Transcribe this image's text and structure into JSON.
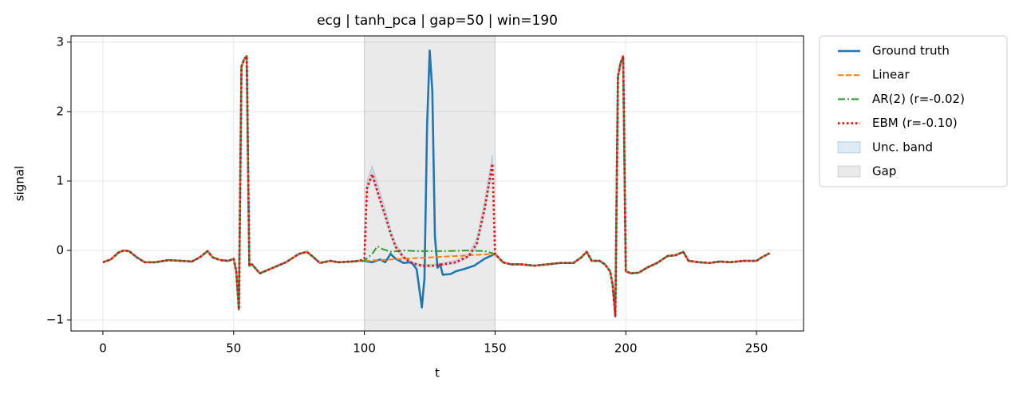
{
  "chart_data": {
    "type": "line",
    "title": "ecg | tanh_pca | gap=50 | win=190",
    "xlabel": "t",
    "ylabel": "signal",
    "xlim": [
      -12.2,
      268
    ],
    "ylim": [
      -1.16,
      3.09
    ],
    "xticks": [
      0,
      50,
      100,
      150,
      200,
      250
    ],
    "yticks": [
      {
        "value": -1,
        "label": "−1"
      },
      0,
      1,
      2,
      3
    ],
    "grid": true,
    "legend": "outside right",
    "gap": {
      "name": "Gap",
      "x0": 100,
      "x1": 150,
      "color": "#808080"
    },
    "band": {
      "name": "Unc. band",
      "color": "#1f77b4",
      "x": [
        100,
        101,
        103,
        105,
        108,
        110,
        112,
        115,
        118,
        122,
        126,
        130,
        135,
        140,
        143,
        146,
        149
      ],
      "lower": [
        -0.14,
        0.85,
        1.05,
        0.8,
        0.45,
        0.2,
        0.02,
        -0.12,
        -0.2,
        -0.24,
        -0.24,
        -0.22,
        -0.19,
        -0.1,
        0.05,
        0.55,
        1.18
      ],
      "upper": [
        -0.1,
        1.0,
        1.22,
        0.98,
        0.6,
        0.32,
        0.1,
        -0.07,
        -0.16,
        -0.2,
        -0.2,
        -0.18,
        -0.14,
        -0.04,
        0.18,
        0.72,
        1.38
      ]
    },
    "series": [
      {
        "name": "Ground truth",
        "color": "#1f77b4",
        "dash": "solid",
        "x": [
          0,
          3,
          6,
          8,
          10,
          13,
          16,
          20,
          25,
          30,
          34,
          37,
          40,
          42,
          45,
          48,
          50,
          51,
          52,
          53,
          54,
          55,
          56,
          57,
          60,
          65,
          70,
          75,
          78,
          80,
          83,
          87,
          90,
          95,
          98,
          100,
          103,
          106,
          108,
          110,
          112,
          115,
          118,
          120,
          122,
          123,
          124,
          125,
          126,
          127,
          128,
          129,
          130,
          133,
          135,
          138,
          142,
          146,
          150,
          153,
          156,
          160,
          165,
          170,
          175,
          180,
          183,
          185,
          187,
          190,
          192,
          194,
          195,
          196,
          197,
          198,
          199,
          200,
          202,
          205,
          208,
          212,
          216,
          219,
          222,
          224,
          228,
          232,
          236,
          240,
          245,
          250,
          252,
          255
        ],
        "values": [
          -0.17,
          -0.13,
          -0.03,
          0,
          -0.01,
          -0.1,
          -0.17,
          -0.17,
          -0.14,
          -0.15,
          -0.16,
          -0.1,
          -0.01,
          -0.1,
          -0.14,
          -0.15,
          -0.12,
          -0.3,
          -0.85,
          2.65,
          2.75,
          2.8,
          -0.22,
          -0.2,
          -0.33,
          -0.25,
          -0.17,
          -0.05,
          -0.02,
          -0.08,
          -0.18,
          -0.15,
          -0.17,
          -0.16,
          -0.15,
          -0.15,
          -0.17,
          -0.13,
          -0.17,
          -0.05,
          -0.12,
          -0.18,
          -0.17,
          -0.27,
          -0.82,
          -0.4,
          1.8,
          2.88,
          2.3,
          0.2,
          -0.25,
          -0.2,
          -0.35,
          -0.34,
          -0.3,
          -0.27,
          -0.22,
          -0.12,
          -0.05,
          -0.17,
          -0.2,
          -0.2,
          -0.22,
          -0.2,
          -0.18,
          -0.18,
          -0.1,
          -0.02,
          -0.15,
          -0.15,
          -0.2,
          -0.3,
          -0.5,
          -0.95,
          2.5,
          2.7,
          2.8,
          -0.3,
          -0.33,
          -0.32,
          -0.25,
          -0.18,
          -0.08,
          -0.07,
          -0.02,
          -0.15,
          -0.17,
          -0.18,
          -0.16,
          -0.17,
          -0.15,
          -0.15,
          -0.1,
          -0.04
        ]
      },
      {
        "name": "Linear",
        "color": "#ff7f0e",
        "dash": "dashed",
        "x": [
          0,
          3,
          6,
          8,
          10,
          13,
          16,
          20,
          25,
          30,
          34,
          37,
          40,
          42,
          45,
          48,
          50,
          51,
          52,
          53,
          54,
          55,
          56,
          57,
          60,
          65,
          70,
          75,
          78,
          80,
          83,
          87,
          90,
          95,
          98,
          100,
          150,
          153,
          156,
          160,
          165,
          170,
          175,
          180,
          183,
          185,
          187,
          190,
          192,
          194,
          195,
          196,
          197,
          198,
          199,
          200,
          202,
          205,
          208,
          212,
          216,
          219,
          222,
          224,
          228,
          232,
          236,
          240,
          245,
          250,
          252,
          255
        ],
        "values": [
          -0.17,
          -0.13,
          -0.03,
          0,
          -0.01,
          -0.1,
          -0.17,
          -0.17,
          -0.14,
          -0.15,
          -0.16,
          -0.1,
          -0.01,
          -0.1,
          -0.14,
          -0.15,
          -0.12,
          -0.3,
          -0.85,
          2.65,
          2.75,
          2.8,
          -0.22,
          -0.2,
          -0.33,
          -0.25,
          -0.17,
          -0.05,
          -0.02,
          -0.08,
          -0.18,
          -0.15,
          -0.17,
          -0.16,
          -0.15,
          -0.15,
          -0.05,
          -0.17,
          -0.2,
          -0.2,
          -0.22,
          -0.2,
          -0.18,
          -0.18,
          -0.1,
          -0.02,
          -0.15,
          -0.15,
          -0.2,
          -0.3,
          -0.5,
          -0.95,
          2.5,
          2.7,
          2.8,
          -0.3,
          -0.33,
          -0.32,
          -0.25,
          -0.18,
          -0.08,
          -0.07,
          -0.02,
          -0.15,
          -0.17,
          -0.18,
          -0.16,
          -0.17,
          -0.15,
          -0.15,
          -0.1,
          -0.04
        ]
      },
      {
        "name": "AR(2) (r=-0.02)",
        "color": "#2ca02c",
        "dash": "dashdot",
        "x": [
          0,
          3,
          6,
          8,
          10,
          13,
          16,
          20,
          25,
          30,
          34,
          37,
          40,
          42,
          45,
          48,
          50,
          51,
          52,
          53,
          54,
          55,
          56,
          57,
          60,
          65,
          70,
          75,
          78,
          80,
          83,
          87,
          90,
          95,
          98,
          100,
          103,
          105,
          107,
          110,
          115,
          120,
          130,
          140,
          146,
          150,
          153,
          156,
          160,
          165,
          170,
          175,
          180,
          183,
          185,
          187,
          190,
          192,
          194,
          195,
          196,
          197,
          198,
          199,
          200,
          202,
          205,
          208,
          212,
          216,
          219,
          222,
          224,
          228,
          232,
          236,
          240,
          245,
          250,
          252,
          255
        ],
        "values": [
          -0.17,
          -0.13,
          -0.03,
          0,
          -0.01,
          -0.1,
          -0.17,
          -0.17,
          -0.14,
          -0.15,
          -0.16,
          -0.1,
          -0.01,
          -0.1,
          -0.14,
          -0.15,
          -0.12,
          -0.3,
          -0.85,
          2.65,
          2.75,
          2.8,
          -0.22,
          -0.2,
          -0.33,
          -0.25,
          -0.17,
          -0.05,
          -0.02,
          -0.08,
          -0.18,
          -0.15,
          -0.17,
          -0.16,
          -0.15,
          -0.15,
          -0.05,
          0.06,
          0.02,
          -0.02,
          0,
          -0.01,
          -0.01,
          0,
          -0.01,
          -0.05,
          -0.17,
          -0.2,
          -0.2,
          -0.22,
          -0.2,
          -0.18,
          -0.18,
          -0.1,
          -0.02,
          -0.15,
          -0.15,
          -0.2,
          -0.3,
          -0.5,
          -0.95,
          2.5,
          2.7,
          2.8,
          -0.3,
          -0.33,
          -0.32,
          -0.25,
          -0.18,
          -0.08,
          -0.07,
          -0.02,
          -0.15,
          -0.17,
          -0.18,
          -0.16,
          -0.17,
          -0.15,
          -0.15,
          -0.1,
          -0.04
        ]
      },
      {
        "name": "EBM (r=-0.10)",
        "color": "#ff0000",
        "dash": "dotted",
        "x": [
          0,
          3,
          6,
          8,
          10,
          13,
          16,
          20,
          25,
          30,
          34,
          37,
          40,
          42,
          45,
          48,
          50,
          51,
          52,
          53,
          54,
          55,
          56,
          57,
          60,
          65,
          70,
          75,
          78,
          80,
          83,
          87,
          90,
          95,
          98,
          100,
          101,
          103,
          105,
          108,
          110,
          112,
          115,
          118,
          122,
          126,
          130,
          135,
          140,
          143,
          146,
          149,
          150,
          153,
          156,
          160,
          165,
          170,
          175,
          180,
          183,
          185,
          187,
          190,
          192,
          194,
          195,
          196,
          197,
          198,
          199,
          200,
          202,
          205,
          208,
          212,
          216,
          219,
          222,
          224,
          228,
          232,
          236,
          240,
          245,
          250,
          252,
          255
        ],
        "values": [
          -0.17,
          -0.13,
          -0.03,
          0,
          -0.01,
          -0.1,
          -0.17,
          -0.17,
          -0.14,
          -0.15,
          -0.16,
          -0.1,
          -0.01,
          -0.1,
          -0.14,
          -0.15,
          -0.12,
          -0.3,
          -0.85,
          2.65,
          2.75,
          2.8,
          -0.22,
          -0.2,
          -0.33,
          -0.25,
          -0.17,
          -0.05,
          -0.02,
          -0.08,
          -0.18,
          -0.15,
          -0.17,
          -0.16,
          -0.15,
          -0.12,
          0.9,
          1.1,
          0.85,
          0.5,
          0.25,
          0.05,
          -0.1,
          -0.18,
          -0.22,
          -0.22,
          -0.2,
          -0.17,
          -0.08,
          0.1,
          0.6,
          1.25,
          -0.05,
          -0.17,
          -0.2,
          -0.2,
          -0.22,
          -0.2,
          -0.18,
          -0.18,
          -0.1,
          -0.02,
          -0.15,
          -0.15,
          -0.2,
          -0.3,
          -0.5,
          -0.95,
          2.5,
          2.7,
          2.8,
          -0.3,
          -0.33,
          -0.32,
          -0.25,
          -0.18,
          -0.08,
          -0.07,
          -0.02,
          -0.15,
          -0.17,
          -0.18,
          -0.16,
          -0.17,
          -0.15,
          -0.15,
          -0.1,
          -0.04
        ]
      }
    ]
  }
}
